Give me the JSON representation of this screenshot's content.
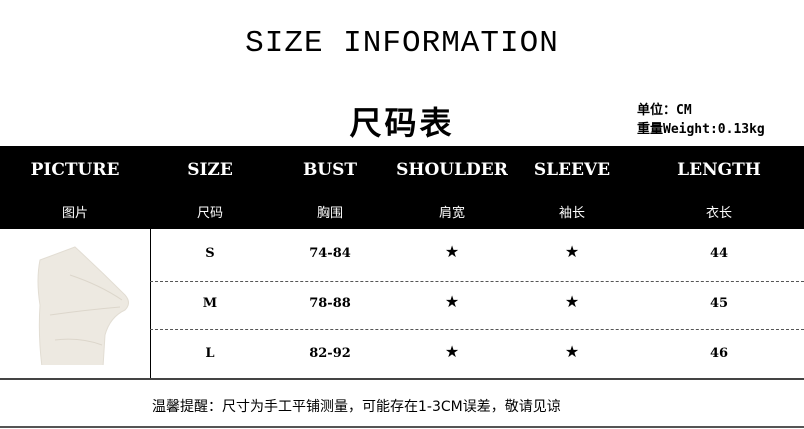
{
  "title": "SIZE INFORMATION",
  "subtitle": "尺码表",
  "unit": "单位：CM",
  "weight": "重量Weight:0.13kg",
  "columns": [
    {
      "en": "PICTURE",
      "cn": "图片"
    },
    {
      "en": "SIZE",
      "cn": "尺码"
    },
    {
      "en": "BUST",
      "cn": "胸围"
    },
    {
      "en": "SHOULDER",
      "cn": "肩宽"
    },
    {
      "en": "SLEEVE",
      "cn": "袖长"
    },
    {
      "en": "LENGTH",
      "cn": "衣长"
    }
  ],
  "rows": [
    {
      "size": "S",
      "bust": "74-84",
      "shoulder": "★",
      "sleeve": "★",
      "length": "44"
    },
    {
      "size": "M",
      "bust": "78-88",
      "shoulder": "★",
      "sleeve": "★",
      "length": "45"
    },
    {
      "size": "L",
      "bust": "82-92",
      "shoulder": "★",
      "sleeve": "★",
      "length": "46"
    }
  ],
  "note": "温馨提醒：尺寸为手工平铺测量，可能存在1-3CM误差，敬请见谅",
  "colors": {
    "header_bg": "#000000",
    "header_text": "#ffffff",
    "garment": "#ede9e1"
  }
}
